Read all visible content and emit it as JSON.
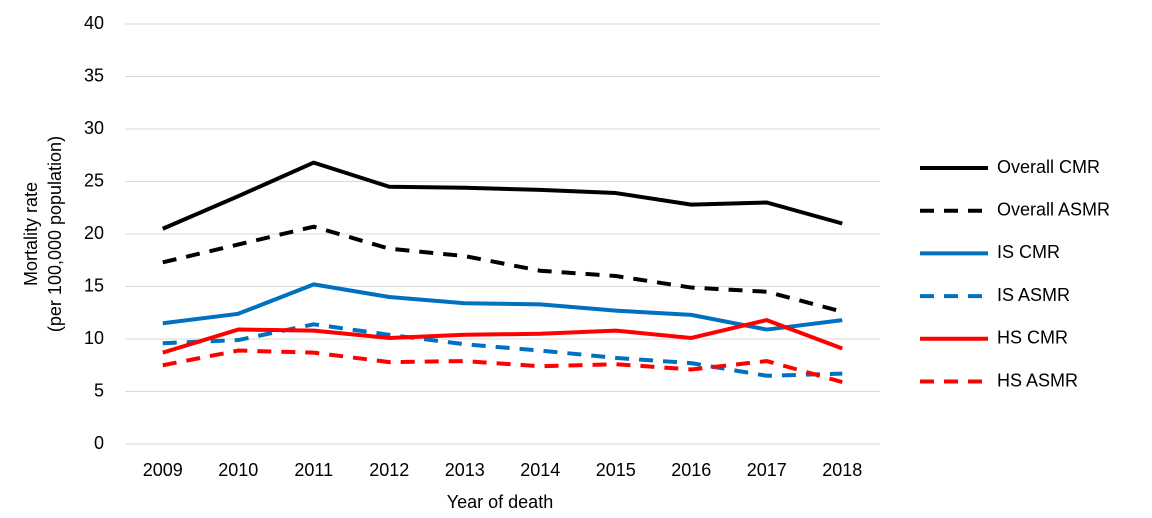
{
  "chart_data": {
    "type": "line",
    "x_label": "Year of death",
    "y_label": [
      "Mortality rate",
      "(per 100,000 population)"
    ],
    "categories": [
      "2009",
      "2010",
      "2011",
      "2012",
      "2013",
      "2014",
      "2015",
      "2016",
      "2017",
      "2018"
    ],
    "series": [
      {
        "name": "Overall CMR",
        "color": "#000000",
        "dashed": false,
        "values": [
          20.5,
          23.6,
          26.8,
          24.5,
          24.4,
          24.2,
          23.9,
          22.8,
          23.0,
          21.0
        ]
      },
      {
        "name": "Overall ASMR",
        "color": "#000000",
        "dashed": true,
        "values": [
          17.3,
          19.0,
          20.7,
          18.6,
          17.9,
          16.5,
          16.0,
          14.9,
          14.5,
          12.6
        ]
      },
      {
        "name": "IS CMR",
        "color": "#0070c0",
        "dashed": false,
        "values": [
          11.5,
          12.4,
          15.2,
          14.0,
          13.4,
          13.3,
          12.7,
          12.3,
          10.9,
          11.8
        ]
      },
      {
        "name": "IS ASMR",
        "color": "#0070c0",
        "dashed": true,
        "values": [
          9.6,
          9.9,
          11.4,
          10.4,
          9.5,
          8.9,
          8.2,
          7.7,
          6.5,
          6.7
        ]
      },
      {
        "name": "HS CMR",
        "color": "#ff0000",
        "dashed": false,
        "values": [
          8.7,
          10.9,
          10.8,
          10.1,
          10.4,
          10.5,
          10.8,
          10.1,
          11.8,
          9.1
        ]
      },
      {
        "name": "HS ASMR",
        "color": "#ff0000",
        "dashed": true,
        "values": [
          7.5,
          8.9,
          8.7,
          7.8,
          7.9,
          7.4,
          7.6,
          7.1,
          7.9,
          5.9
        ]
      }
    ],
    "ylim": [
      0,
      40
    ],
    "yticks": [
      0,
      5,
      10,
      15,
      20,
      25,
      30,
      35,
      40
    ],
    "grid": true,
    "legend": "right"
  }
}
